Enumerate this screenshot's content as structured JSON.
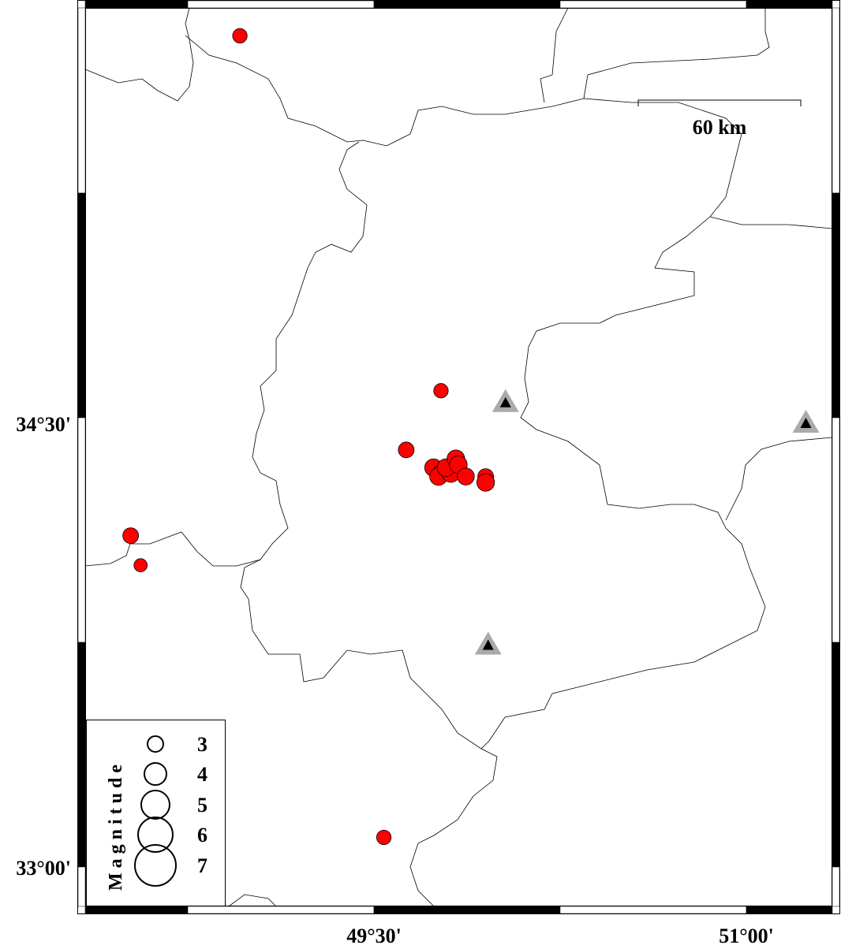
{
  "map": {
    "lon_labels": [
      "49°30'",
      "51°00'"
    ],
    "lat_labels": [
      "34°30'",
      "33°00'"
    ],
    "scale_bar": {
      "label": "60 km",
      "length_km": 60
    },
    "event_color": "#ff0000",
    "station_color": "#aaaaaa",
    "events": [
      {
        "lon": 48.96,
        "lat": 35.81,
        "mag": 2.8
      },
      {
        "lon": 49.77,
        "lat": 34.61,
        "mag": 2.8
      },
      {
        "lon": 49.63,
        "lat": 34.41,
        "mag": 3.0
      },
      {
        "lon": 48.52,
        "lat": 34.12,
        "mag": 3.0
      },
      {
        "lon": 48.56,
        "lat": 34.02,
        "mag": 2.6
      },
      {
        "lon": 49.54,
        "lat": 33.1,
        "mag": 2.8
      },
      {
        "lon": 49.74,
        "lat": 34.35,
        "mag": 3.3
      },
      {
        "lon": 49.77,
        "lat": 34.33,
        "mag": 3.3
      },
      {
        "lon": 49.76,
        "lat": 34.32,
        "mag": 3.3
      },
      {
        "lon": 49.81,
        "lat": 34.33,
        "mag": 3.3
      },
      {
        "lon": 49.79,
        "lat": 34.35,
        "mag": 3.3
      },
      {
        "lon": 49.83,
        "lat": 34.38,
        "mag": 3.3
      },
      {
        "lon": 49.84,
        "lat": 34.36,
        "mag": 3.3
      },
      {
        "lon": 49.87,
        "lat": 34.32,
        "mag": 3.2
      },
      {
        "lon": 49.95,
        "lat": 34.32,
        "mag": 3.0
      },
      {
        "lon": 49.95,
        "lat": 34.3,
        "mag": 3.3
      }
    ],
    "stations": [
      {
        "lon": 50.03,
        "lat": 34.57
      },
      {
        "lon": 51.24,
        "lat": 34.5
      },
      {
        "lon": 49.96,
        "lat": 33.75
      }
    ]
  },
  "legend": {
    "title": "Magnitude",
    "magnitudes": [
      "3",
      "4",
      "5",
      "6",
      "7"
    ]
  }
}
